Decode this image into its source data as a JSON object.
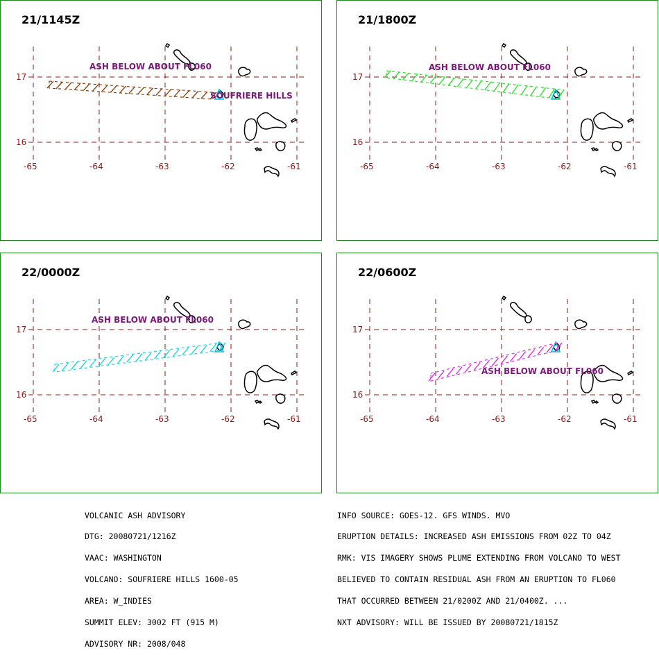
{
  "colors": {
    "frame": "#1b8a1b",
    "grid": "#8b1a1a",
    "label": "#7a1a7a",
    "coast": "#000000",
    "volcano": "#00bfe6"
  },
  "axis_labels": {
    "lat": [
      "17",
      "16"
    ],
    "lon": [
      "-65",
      "-64",
      "-63",
      "-62",
      "-61"
    ]
  },
  "panels": [
    {
      "title": "21/1145Z",
      "ash_label": "ASH BELOW ABOUT FL060",
      "volcano_label": "SOUFRIERE HILLS",
      "plume_color": "#8b4513"
    },
    {
      "title": "21/1800Z",
      "ash_label": "ASH BELOW ABOUT FL060",
      "volcano_label": "",
      "plume_color": "#33dd33"
    },
    {
      "title": "22/0000Z",
      "ash_label": "ASH BELOW ABOUT FL060",
      "volcano_label": "",
      "plume_color": "#22d6e6"
    },
    {
      "title": "22/0600Z",
      "ash_label": "ASH BELOW ABOUT FL060",
      "volcano_label": "",
      "plume_color": "#dd33dd"
    }
  ],
  "advisory_left": [
    "VOLCANIC ASH ADVISORY",
    "DTG: 20080721/1216Z",
    "VAAC: WASHINGTON",
    "VOLCANO: SOUFRIERE HILLS 1600-05",
    "AREA: W_INDIES",
    "SUMMIT ELEV: 3002 FT (915 M)",
    "ADVISORY NR: 2008/048"
  ],
  "advisory_right": [
    "INFO SOURCE: GOES-12. GFS WINDS. MVO",
    "ERUPTION DETAILS: INCREASED ASH EMISSIONS FROM 02Z TO 04Z",
    "RMK: VIS IMAGERY SHOWS PLUME EXTENDING FROM VOLCANO TO WEST",
    "BELIEVED TO CONTAIN RESIDUAL ASH FROM AN ERUPTION TO FL060",
    "THAT OCCURRED BETWEEN 21/0200Z AND 21/0400Z. ...",
    "NXT ADVISORY: WILL BE ISSUED BY 20080721/1815Z"
  ]
}
